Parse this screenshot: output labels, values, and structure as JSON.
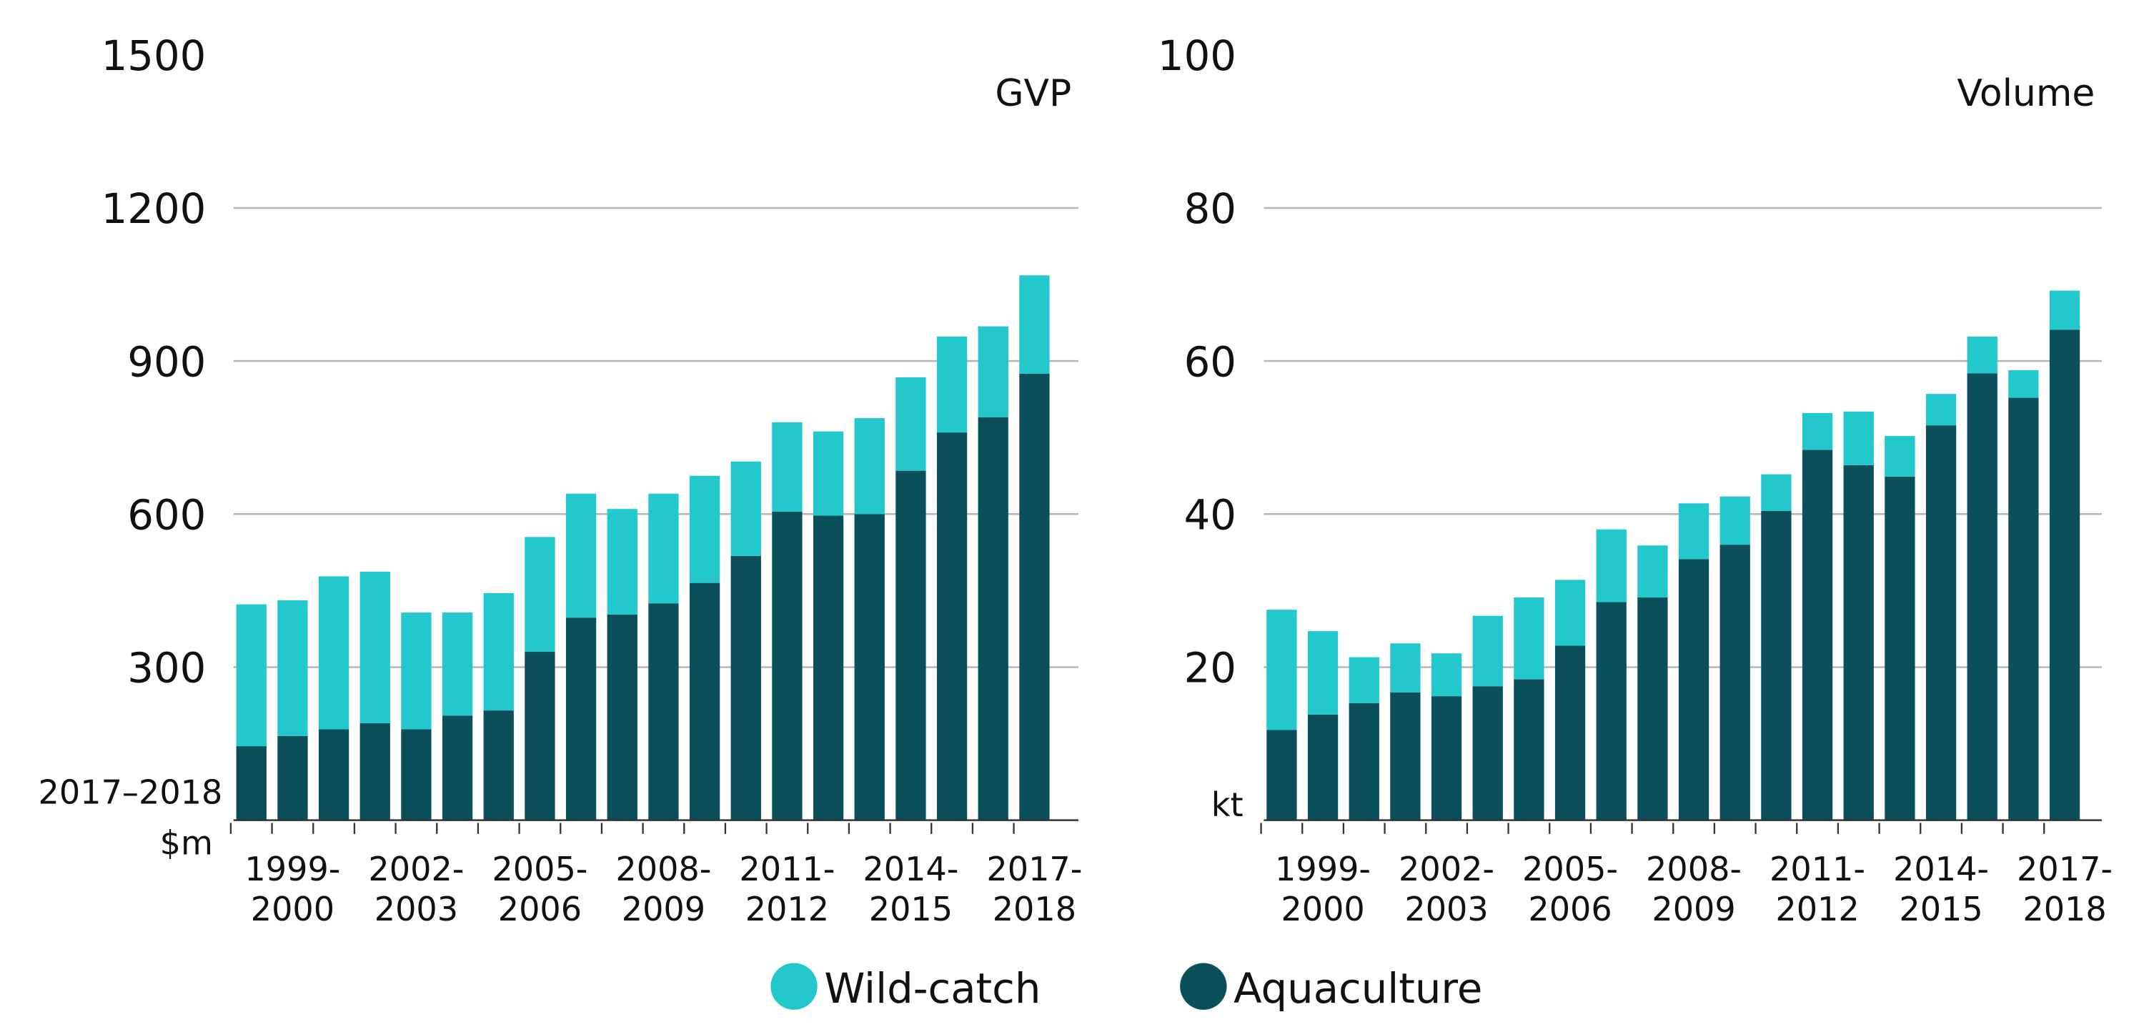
{
  "chart_data": [
    {
      "type": "bar",
      "stacked": true,
      "title": "GVP",
      "ylabel": [
        "2017–2018",
        "$m"
      ],
      "categories": [
        null,
        "1999-2000",
        null,
        null,
        "2002-2003",
        null,
        null,
        "2005-2006",
        null,
        null,
        "2008-2009",
        null,
        null,
        "2011-2012",
        null,
        null,
        "2014-2015",
        null,
        null,
        "2017-2018"
      ],
      "series": [
        {
          "name": "Aquaculture",
          "color": "#0b4f5a",
          "values": [
            145,
            165,
            178,
            190,
            178,
            205,
            215,
            330,
            397,
            403,
            425,
            465,
            518,
            605,
            597,
            600,
            685,
            760,
            790,
            875
          ]
        },
        {
          "name": "Wild-catch",
          "color": "#22c8cc",
          "values": [
            278,
            266,
            300,
            297,
            229,
            202,
            230,
            225,
            243,
            207,
            215,
            210,
            185,
            175,
            165,
            188,
            183,
            188,
            178,
            193
          ]
        }
      ],
      "ylim": [
        0,
        1500
      ],
      "yticks": [
        300,
        600,
        900,
        1200,
        1500
      ],
      "grid": true
    },
    {
      "type": "bar",
      "stacked": true,
      "title": "Volume",
      "ylabel": [
        "kt"
      ],
      "categories": [
        null,
        "1999-2000",
        null,
        null,
        "2002-2003",
        null,
        null,
        "2005-2006",
        null,
        null,
        "2008-2009",
        null,
        null,
        "2011-2012",
        null,
        null,
        "2014-2015",
        null,
        null,
        "2017-2018"
      ],
      "series": [
        {
          "color": "#0b4f5a",
          "values": [
            11.8,
            13.8,
            15.3,
            16.7,
            16.2,
            17.5,
            18.4,
            22.8,
            28.5,
            29.1,
            34.1,
            36.0,
            40.4,
            48.4,
            46.4,
            44.9,
            51.6,
            58.4,
            55.2,
            64.1
          ]
        },
        {
          "color": "#22c8cc",
          "values": [
            15.7,
            10.9,
            6.0,
            6.4,
            5.6,
            9.2,
            10.7,
            8.6,
            9.5,
            6.8,
            7.3,
            6.3,
            4.8,
            4.8,
            7.0,
            5.3,
            4.1,
            4.8,
            3.6,
            5.1
          ]
        }
      ],
      "ylim": [
        0,
        100
      ],
      "yticks": [
        20,
        40,
        60,
        80,
        100
      ],
      "grid": true
    }
  ]
}
